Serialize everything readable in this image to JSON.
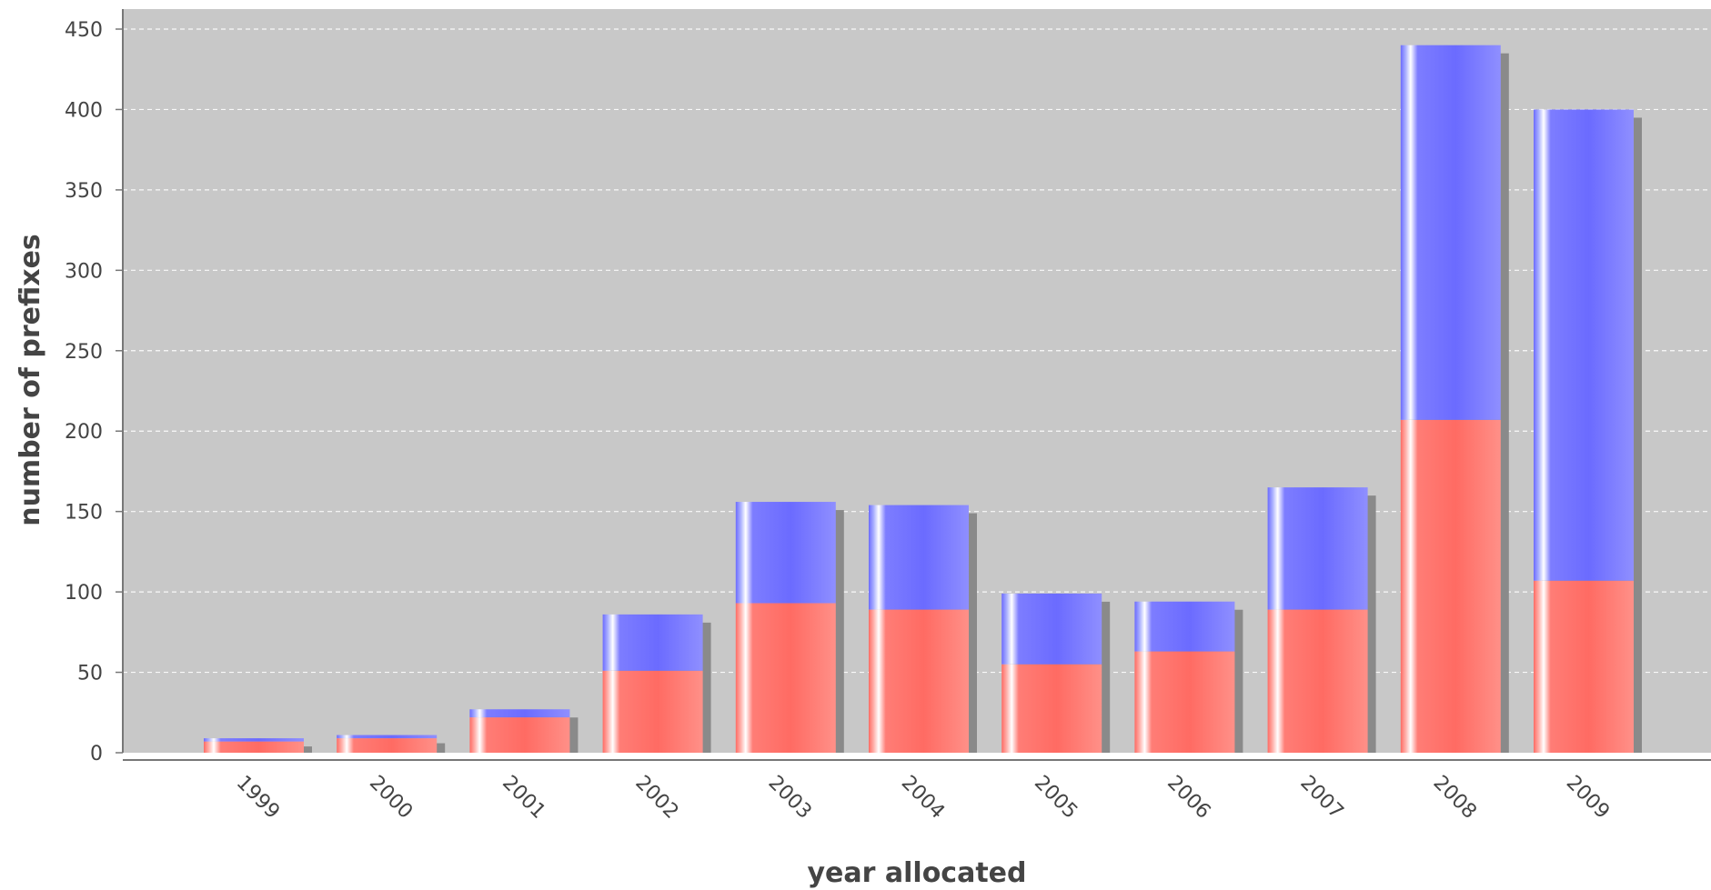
{
  "chart_data": {
    "type": "bar",
    "stacked": true,
    "title": "",
    "xlabel": "year allocated",
    "ylabel": "number of prefixes",
    "ylim": [
      0,
      450
    ],
    "yticks": [
      0,
      50,
      100,
      150,
      200,
      250,
      300,
      350,
      400,
      450
    ],
    "categories": [
      "1999",
      "2000",
      "2001",
      "2002",
      "2003",
      "2004",
      "2005",
      "2006",
      "2007",
      "2008",
      "2009"
    ],
    "series": [
      {
        "color": "#ff6b63",
        "values": [
          7,
          9,
          22,
          51,
          93,
          89,
          55,
          63,
          89,
          207,
          107
        ]
      },
      {
        "color": "#6b6bff",
        "values": [
          2,
          2,
          5,
          35,
          63,
          65,
          44,
          31,
          76,
          233,
          293
        ]
      }
    ],
    "grid": true,
    "legend": "none",
    "plot_background": "#c8c8c8"
  }
}
